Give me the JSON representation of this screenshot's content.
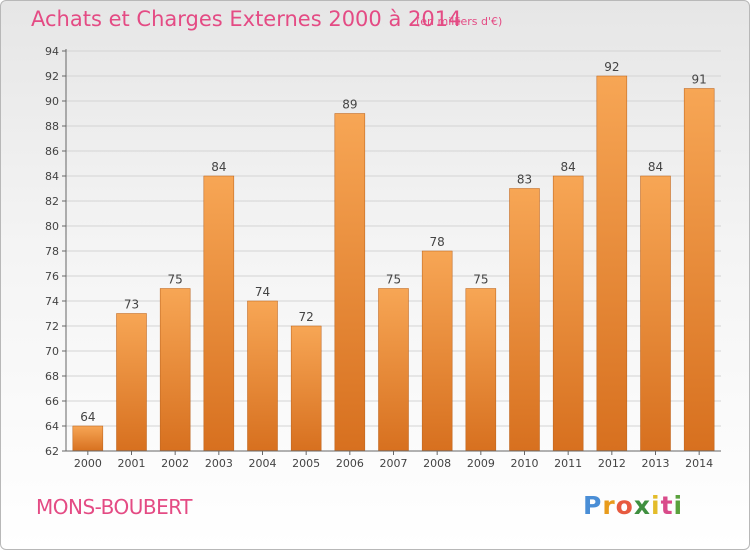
{
  "title": "Achats et Charges Externes 2000 à 2014",
  "unit_note": "(en milliers d'€)",
  "commune": "MONS-BOUBERT",
  "brand": {
    "p": "P",
    "r": "r",
    "o": "o",
    "x": "x",
    "i1": "i",
    "t": "t",
    "i2": "i"
  },
  "colors": {
    "title": "#e44b84",
    "bar_light": "#f7a655",
    "bar_dark": "#d7701f"
  },
  "chart_data": {
    "type": "bar",
    "title": "Achats et Charges Externes 2000 à 2014",
    "categories": [
      "2000",
      "2001",
      "2002",
      "2003",
      "2004",
      "2005",
      "2006",
      "2007",
      "2008",
      "2009",
      "2010",
      "2011",
      "2012",
      "2013",
      "2014"
    ],
    "values": [
      64,
      73,
      75,
      84,
      74,
      72,
      89,
      75,
      78,
      75,
      83,
      84,
      92,
      84,
      91
    ],
    "ylim": [
      62,
      94
    ],
    "yticks": [
      62,
      64,
      66,
      68,
      70,
      72,
      74,
      76,
      78,
      80,
      82,
      84,
      86,
      88,
      90,
      92,
      94
    ],
    "xlabel": "",
    "ylabel": "",
    "grid": true
  }
}
